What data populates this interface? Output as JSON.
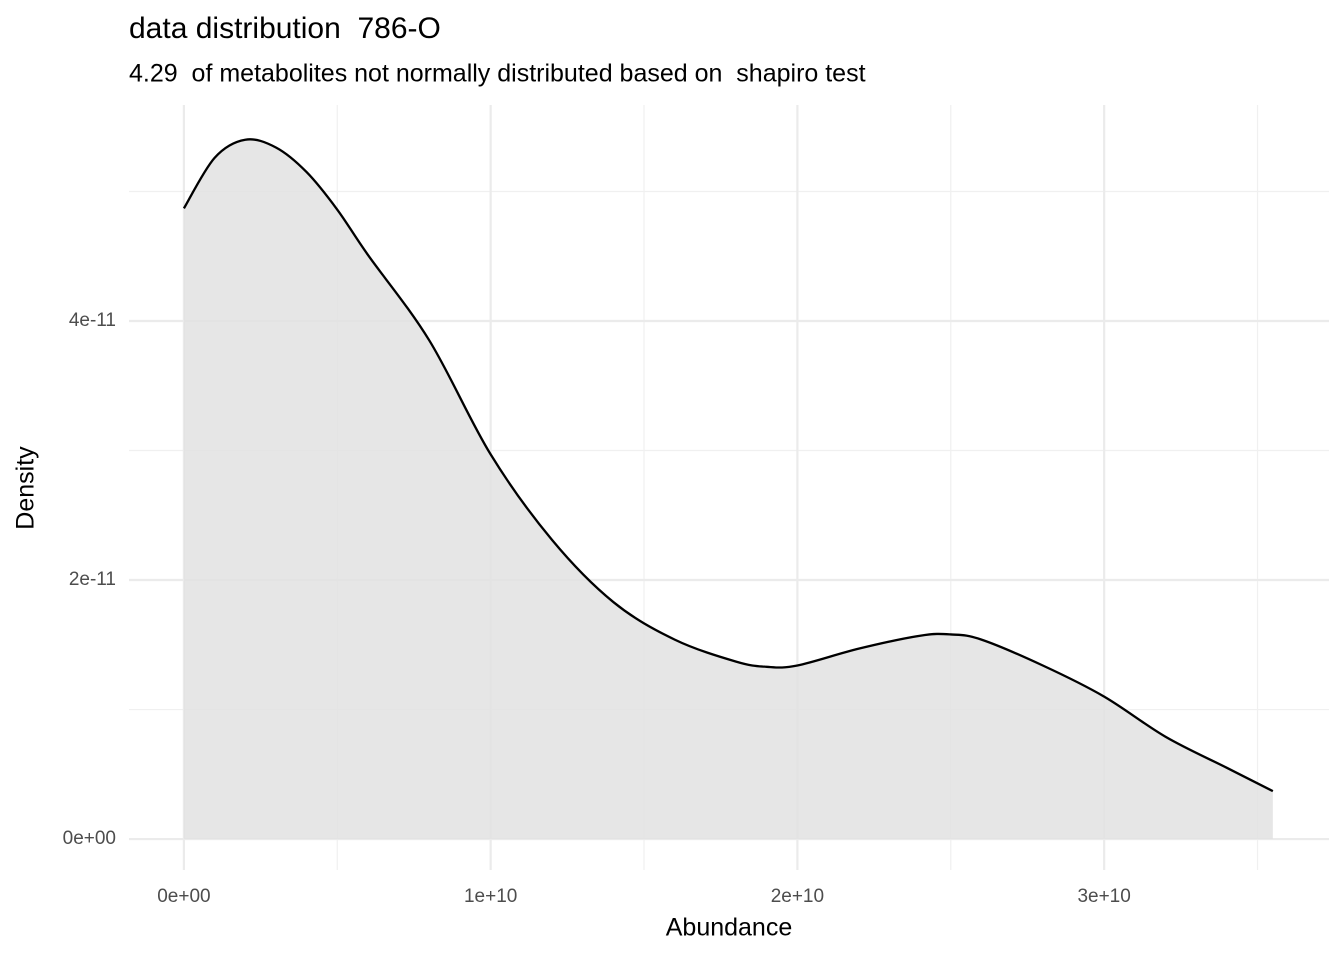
{
  "chart_data": {
    "type": "area",
    "title": "data distribution  786-O",
    "subtitle": "4.29  of metabolites not normally distributed based on  shapiro test",
    "x_label": "Abundance",
    "y_label": "Density",
    "x": [
      0,
      1000000000,
      2000000000,
      3000000000,
      4000000000,
      5000000000,
      6000000000,
      8000000000,
      10000000000,
      12000000000,
      14000000000,
      16000000000,
      18000000000,
      19000000000,
      20000000000,
      22000000000,
      24000000000,
      25000000000,
      26000000000,
      28000000000,
      30000000000,
      32000000000,
      34000000000,
      35500000000
    ],
    "values": [
      4.87e-11,
      5.26e-11,
      5.4e-11,
      5.34e-11,
      5.15e-11,
      4.86e-11,
      4.51e-11,
      3.85e-11,
      2.97e-11,
      2.31e-11,
      1.83e-11,
      1.54e-11,
      1.37e-11,
      1.33e-11,
      1.34e-11,
      1.47e-11,
      1.57e-11,
      1.58e-11,
      1.54e-11,
      1.34e-11,
      1.1e-11,
      7.9e-12,
      5.5e-12,
      3.7e-12
    ],
    "color": "#000000",
    "fill": "#e2e2e2",
    "xlim": [
      -1790000000,
      37330000000
    ],
    "ylim": [
      -2.39e-12,
      5.668e-11
    ],
    "xticks": [
      {
        "value": 0,
        "label": "0e+00"
      },
      {
        "value": 10000000000,
        "label": "1e+10"
      },
      {
        "value": 20000000000,
        "label": "2e+10"
      },
      {
        "value": 30000000000,
        "label": "3e+10"
      }
    ],
    "yticks": [
      {
        "value": 0,
        "label": "0e+00"
      },
      {
        "value": 2e-11,
        "label": "2e-11"
      },
      {
        "value": 4e-11,
        "label": "4e-11"
      }
    ],
    "x_minor_ticks": [
      5000000000,
      15000000000,
      25000000000,
      35000000000
    ],
    "y_minor_ticks": [
      1e-11,
      3e-11,
      5e-11
    ],
    "grid": true
  }
}
